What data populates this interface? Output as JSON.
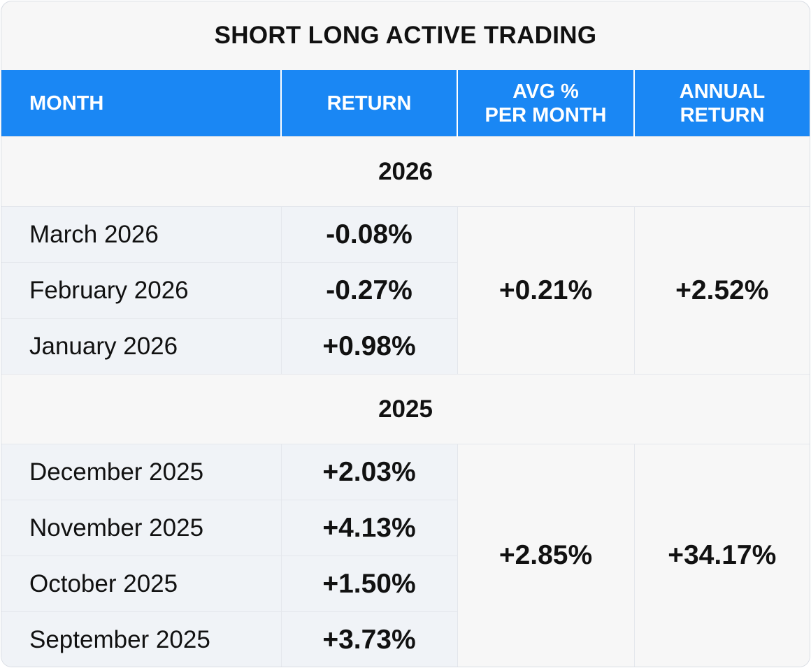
{
  "title": "SHORT LONG ACTIVE TRADING",
  "columns": {
    "month": "MONTH",
    "return": "RETURN",
    "avg_line1": "AVG %",
    "avg_line2": "PER MONTH",
    "annual_line1": "ANNUAL",
    "annual_line2": "RETURN"
  },
  "chart_data": {
    "type": "table",
    "title": "SHORT LONG ACTIVE TRADING",
    "columns": [
      "MONTH",
      "RETURN",
      "AVG % PER MONTH",
      "ANNUAL RETURN"
    ],
    "groups": [
      {
        "year": "2026",
        "rows": [
          {
            "month": "March 2026",
            "return": "-0.08%"
          },
          {
            "month": "February 2026",
            "return": "-0.27%"
          },
          {
            "month": "January 2026",
            "return": "+0.98%"
          }
        ],
        "avg_per_month": "+0.21%",
        "annual_return": "+2.52%"
      },
      {
        "year": "2025",
        "rows": [
          {
            "month": "December 2025",
            "return": "+2.03%"
          },
          {
            "month": "November 2025",
            "return": "+4.13%"
          },
          {
            "month": "October 2025",
            "return": "+1.50%"
          },
          {
            "month": "September 2025",
            "return": "+3.73%"
          }
        ],
        "avg_per_month": "+2.85%",
        "annual_return": "+34.17%"
      }
    ]
  },
  "colors": {
    "header_bg": "#1a87f4",
    "header_text": "#ffffff",
    "row_shade": "#f0f3f7",
    "card_bg": "#f7f7f7"
  }
}
